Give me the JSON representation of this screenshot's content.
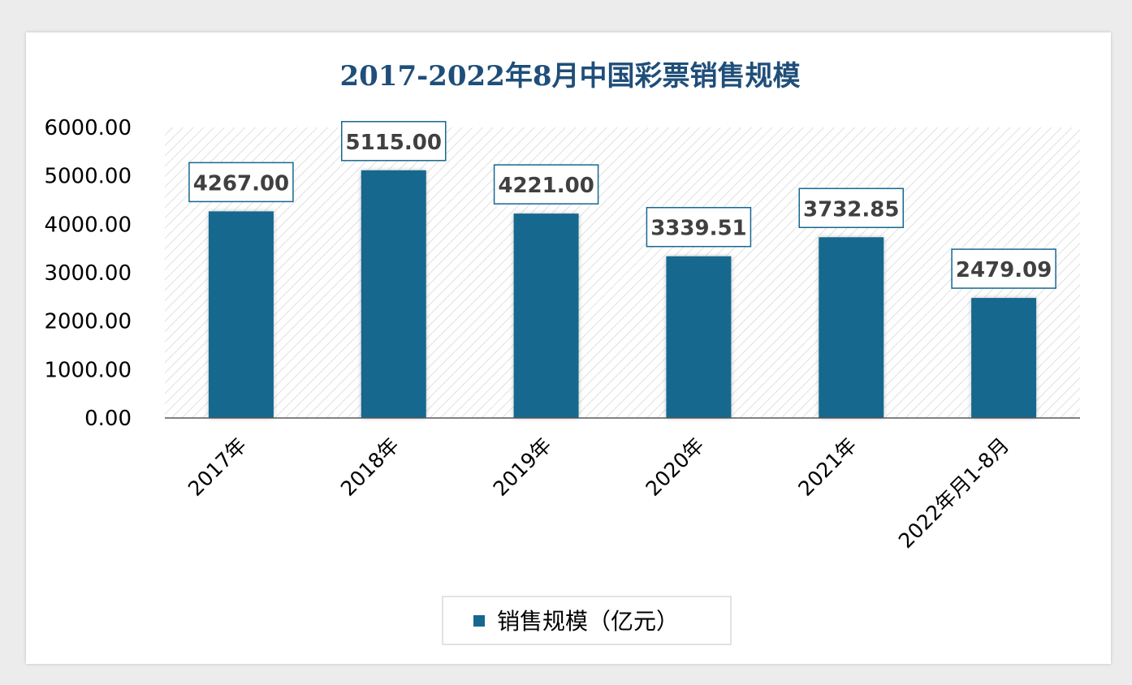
{
  "chart_data": {
    "type": "bar",
    "title": "2017-2022年8月中国彩票销售规模",
    "categories": [
      "2017年",
      "2018年",
      "2019年",
      "2020年",
      "2021年",
      "2022年月1-8月"
    ],
    "series": [
      {
        "name": "销售规模（亿元）",
        "values": [
          4267.0,
          5115.0,
          4221.0,
          3339.51,
          3732.85,
          2479.09
        ],
        "labels": [
          "4267.00",
          "5115.00",
          "4221.00",
          "3339.51",
          "3732.85",
          "2479.09"
        ]
      }
    ],
    "ylim": [
      0,
      6000
    ],
    "yticks": [
      0,
      1000,
      2000,
      3000,
      4000,
      5000,
      6000
    ],
    "ytick_labels": [
      "0.00",
      "1000.00",
      "2000.00",
      "3000.00",
      "4000.00",
      "5000.00",
      "6000.00"
    ],
    "xlabel": "",
    "ylabel": "",
    "legend_position": "bottom",
    "grid": false
  },
  "colors": {
    "bar": "#17678f",
    "title": "#1f4e79",
    "label_border": "#17678f",
    "hatch": "#d9d9d9"
  }
}
